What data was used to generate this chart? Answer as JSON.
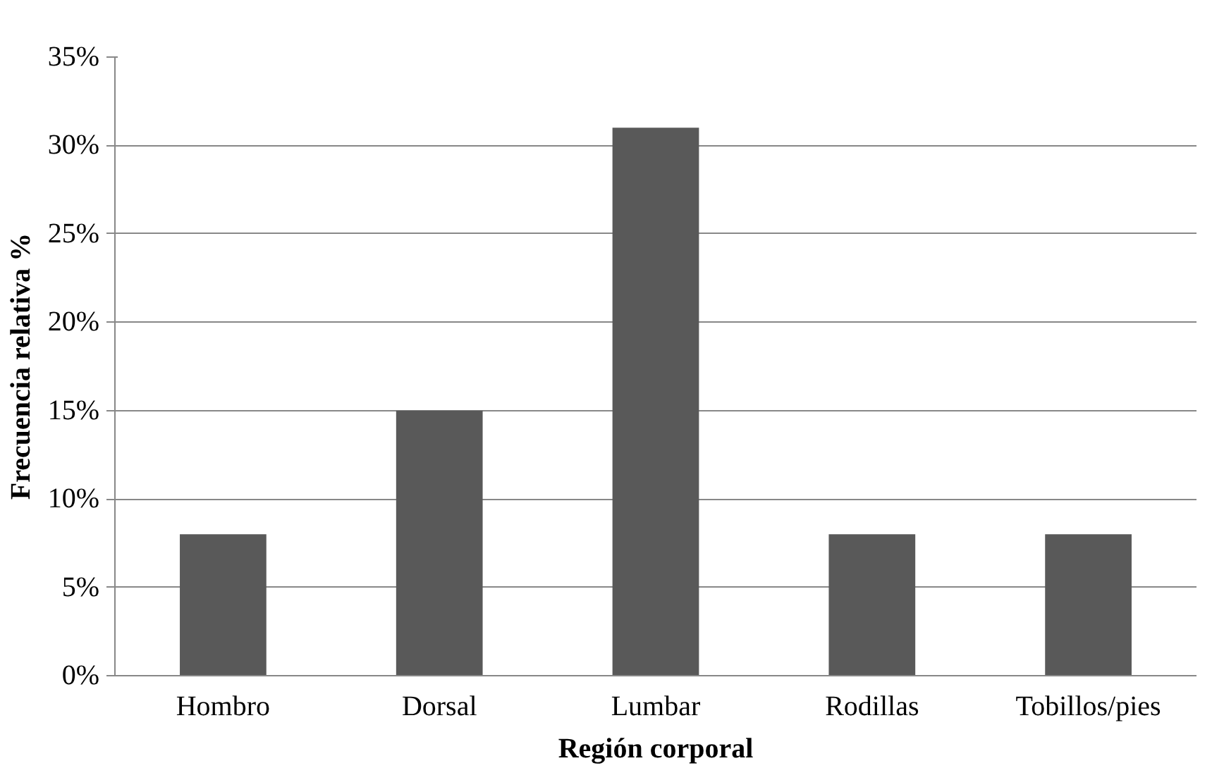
{
  "chart_data": {
    "type": "bar",
    "xlabel": "Región corporal",
    "ylabel": "Frecuencia relativa %",
    "categories": [
      "Hombro",
      "Dorsal",
      "Lumbar",
      "Rodillas",
      "Tobillos/pies"
    ],
    "values": [
      8,
      15,
      31,
      8,
      8
    ],
    "color": "#595959",
    "ylim": [
      0,
      35
    ],
    "yticks": [
      {
        "value": 0,
        "label": "0%"
      },
      {
        "value": 5,
        "label": "5%"
      },
      {
        "value": 10,
        "label": "10%"
      },
      {
        "value": 15,
        "label": "15%"
      },
      {
        "value": 20,
        "label": "20%"
      },
      {
        "value": 25,
        "label": "25%"
      },
      {
        "value": 30,
        "label": "30%"
      },
      {
        "value": 35,
        "label": "35%"
      }
    ],
    "grid": "y"
  }
}
